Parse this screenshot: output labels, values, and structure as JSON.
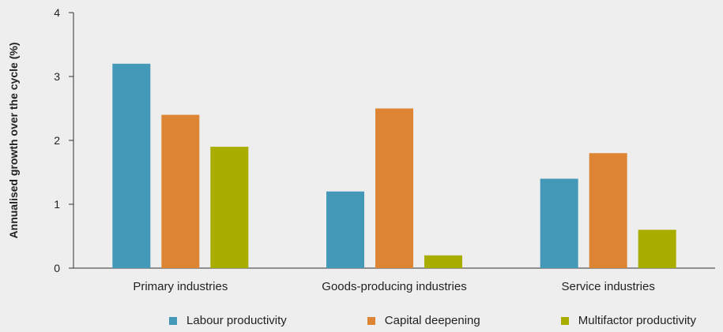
{
  "chart_data": {
    "type": "bar",
    "title": "",
    "xlabel": "",
    "ylabel": "Annualised growth over the cycle (%)",
    "ylim": [
      0,
      4
    ],
    "yticks": [
      0,
      1,
      2,
      3,
      4
    ],
    "grid": false,
    "legend_position": "bottom",
    "categories": [
      "Primary industries",
      "Goods-producing industries",
      "Service industries"
    ],
    "series": [
      {
        "name": "Labour productivity",
        "color": "#4499b8",
        "values": [
          3.2,
          1.2,
          1.4
        ]
      },
      {
        "name": "Capital deepening",
        "color": "#dd8533",
        "values": [
          2.4,
          2.5,
          1.8
        ]
      },
      {
        "name": "Multifactor productivity",
        "color": "#a8ad00",
        "values": [
          1.9,
          0.2,
          0.6
        ]
      }
    ]
  }
}
